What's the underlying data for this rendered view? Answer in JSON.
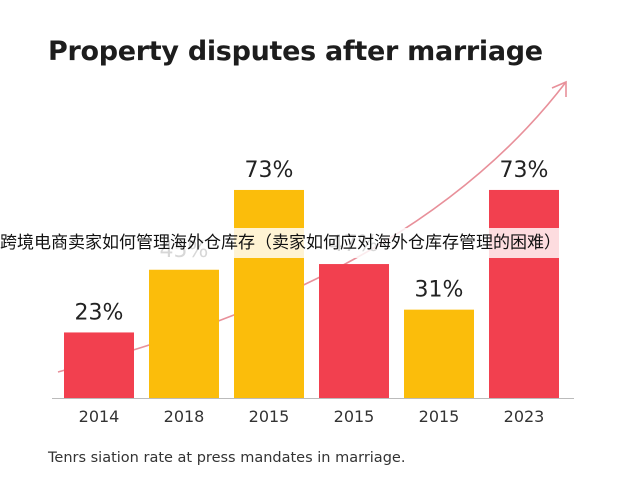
{
  "header": {
    "title": "Property disputes after marriage"
  },
  "footer": {
    "caption": "Tenrs siation rate at press mandates in marriage."
  },
  "overlay": {
    "text": "跨境电商卖家如何管理海外仓库存（卖家如何应对海外仓库存管理的困难）"
  },
  "colors": {
    "red": "#f2404f",
    "yellow": "#fbbd0b",
    "arrow": "#e8909a",
    "axis": "#bbbbbb",
    "text": "#222222"
  },
  "chart_data": {
    "type": "bar",
    "title": "Property disputes after marriage",
    "xlabel": "",
    "ylabel": "",
    "categories": [
      "2014",
      "2018",
      "2015",
      "2015",
      "2015",
      "2023"
    ],
    "values": [
      23,
      45,
      73,
      47,
      31,
      73
    ],
    "data_labels": [
      "23%",
      "45%",
      "73%",
      "47%",
      "31%",
      "73%"
    ],
    "bar_colors": [
      "red",
      "yellow",
      "yellow",
      "red",
      "yellow",
      "red"
    ],
    "trend_arrow": true,
    "grid": false,
    "legend": "none"
  }
}
